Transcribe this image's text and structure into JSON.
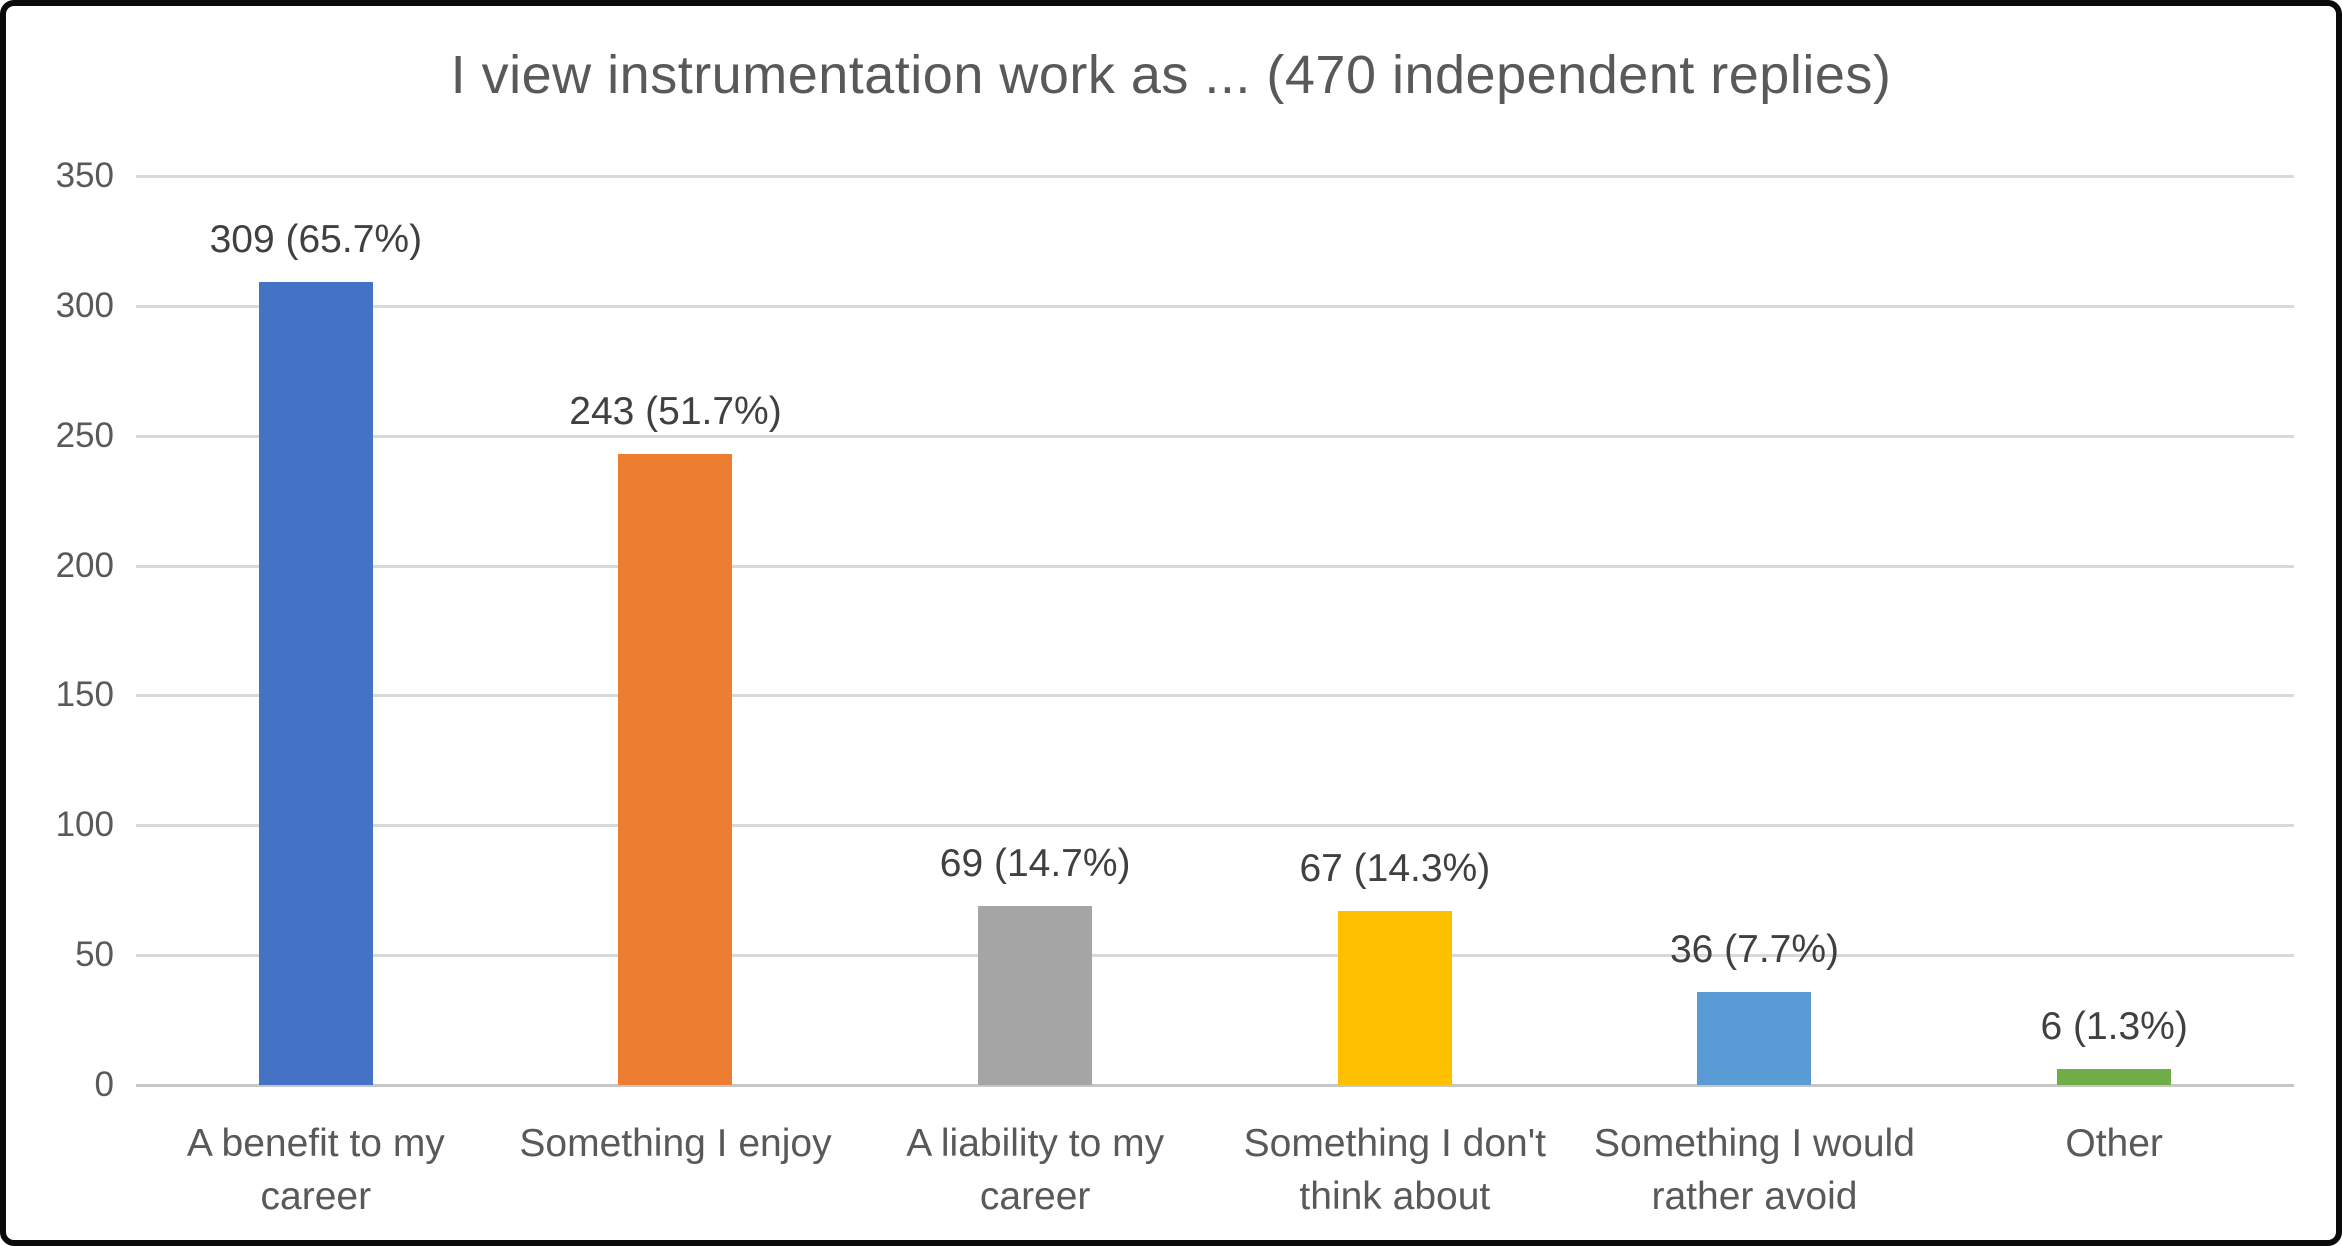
{
  "chart_data": {
    "type": "bar",
    "title": "I view instrumentation work as ... (470 independent replies)",
    "categories": [
      "A benefit to my career",
      "Something I enjoy",
      "A liability to my career",
      "Something I don't think about",
      "Something I would rather avoid",
      "Other"
    ],
    "category_lines": [
      [
        "A benefit to my",
        "career"
      ],
      [
        "Something I enjoy"
      ],
      [
        "A liability to my",
        "career"
      ],
      [
        "Something I don't",
        "think about"
      ],
      [
        "Something I would",
        "rather avoid"
      ],
      [
        "Other"
      ]
    ],
    "values": [
      309,
      243,
      69,
      67,
      36,
      6
    ],
    "data_labels": [
      "309 (65.7%)",
      "243 (51.7%)",
      "69 (14.7%)",
      "67 (14.3%)",
      "36 (7.7%)",
      "6 (1.3%)"
    ],
    "bar_colors": [
      "#4472C4",
      "#ED7D31",
      "#A5A5A5",
      "#FFC000",
      "#5B9BD5",
      "#70AD47"
    ],
    "xlabel": "",
    "ylabel": "",
    "ylim": [
      0,
      350
    ],
    "yticks": [
      0,
      50,
      100,
      150,
      200,
      250,
      300,
      350
    ],
    "ytick_labels": [
      "0",
      "50",
      "100",
      "150",
      "200",
      "250",
      "300",
      "350"
    ],
    "grid": true,
    "legend_position": "none"
  },
  "theme": {
    "title_color": "#595959",
    "axis_text_color": "#595959",
    "data_label_color": "#404040",
    "gridline_color": "#D9D9D9",
    "axis_line_color": "#C6C6C6",
    "background_color": "#FFFFFF",
    "border_color": "#0A0A0A"
  }
}
